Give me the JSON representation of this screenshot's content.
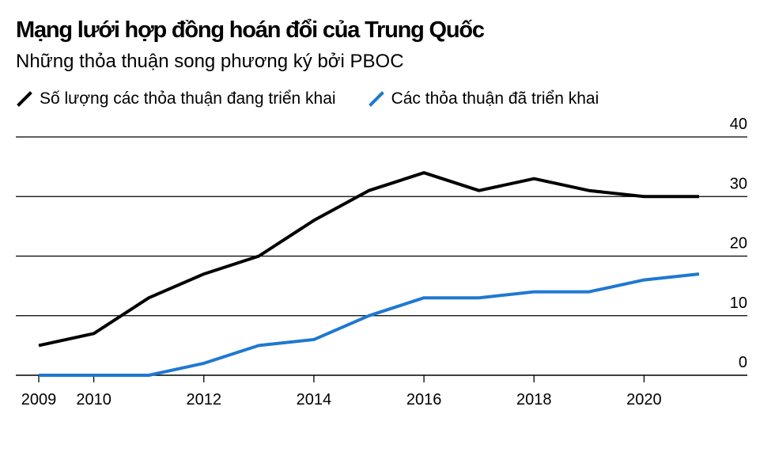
{
  "chart_data": {
    "type": "line",
    "title": "Mạng lưới hợp đồng hoán đổi của Trung Quốc",
    "subtitle": "Những thỏa thuận song phương ký bởi PBOC",
    "xlabel": "",
    "ylabel": "",
    "x": [
      2009,
      2010,
      2011,
      2012,
      2013,
      2014,
      2015,
      2016,
      2017,
      2018,
      2019,
      2020,
      2021
    ],
    "xticks": [
      "2009",
      "2010",
      "2012",
      "2014",
      "2016",
      "2018",
      "2020"
    ],
    "yticks": [
      "0",
      "10",
      "20",
      "30",
      "40"
    ],
    "ylim": [
      0,
      40
    ],
    "xlim": [
      2009,
      2021.9
    ],
    "legend_position": "top-left",
    "series": [
      {
        "name": "Số lượng các thỏa thuận đang triển khai",
        "color": "#000000",
        "values": [
          5,
          7,
          13,
          17,
          20,
          26,
          31,
          34,
          31,
          33,
          31,
          30,
          30
        ]
      },
      {
        "name": "Các thỏa thuận đã triển khai",
        "color": "#1f78d1",
        "values": [
          0,
          0,
          0,
          2,
          5,
          6,
          10,
          13,
          13,
          14,
          14,
          16,
          17
        ]
      }
    ]
  }
}
